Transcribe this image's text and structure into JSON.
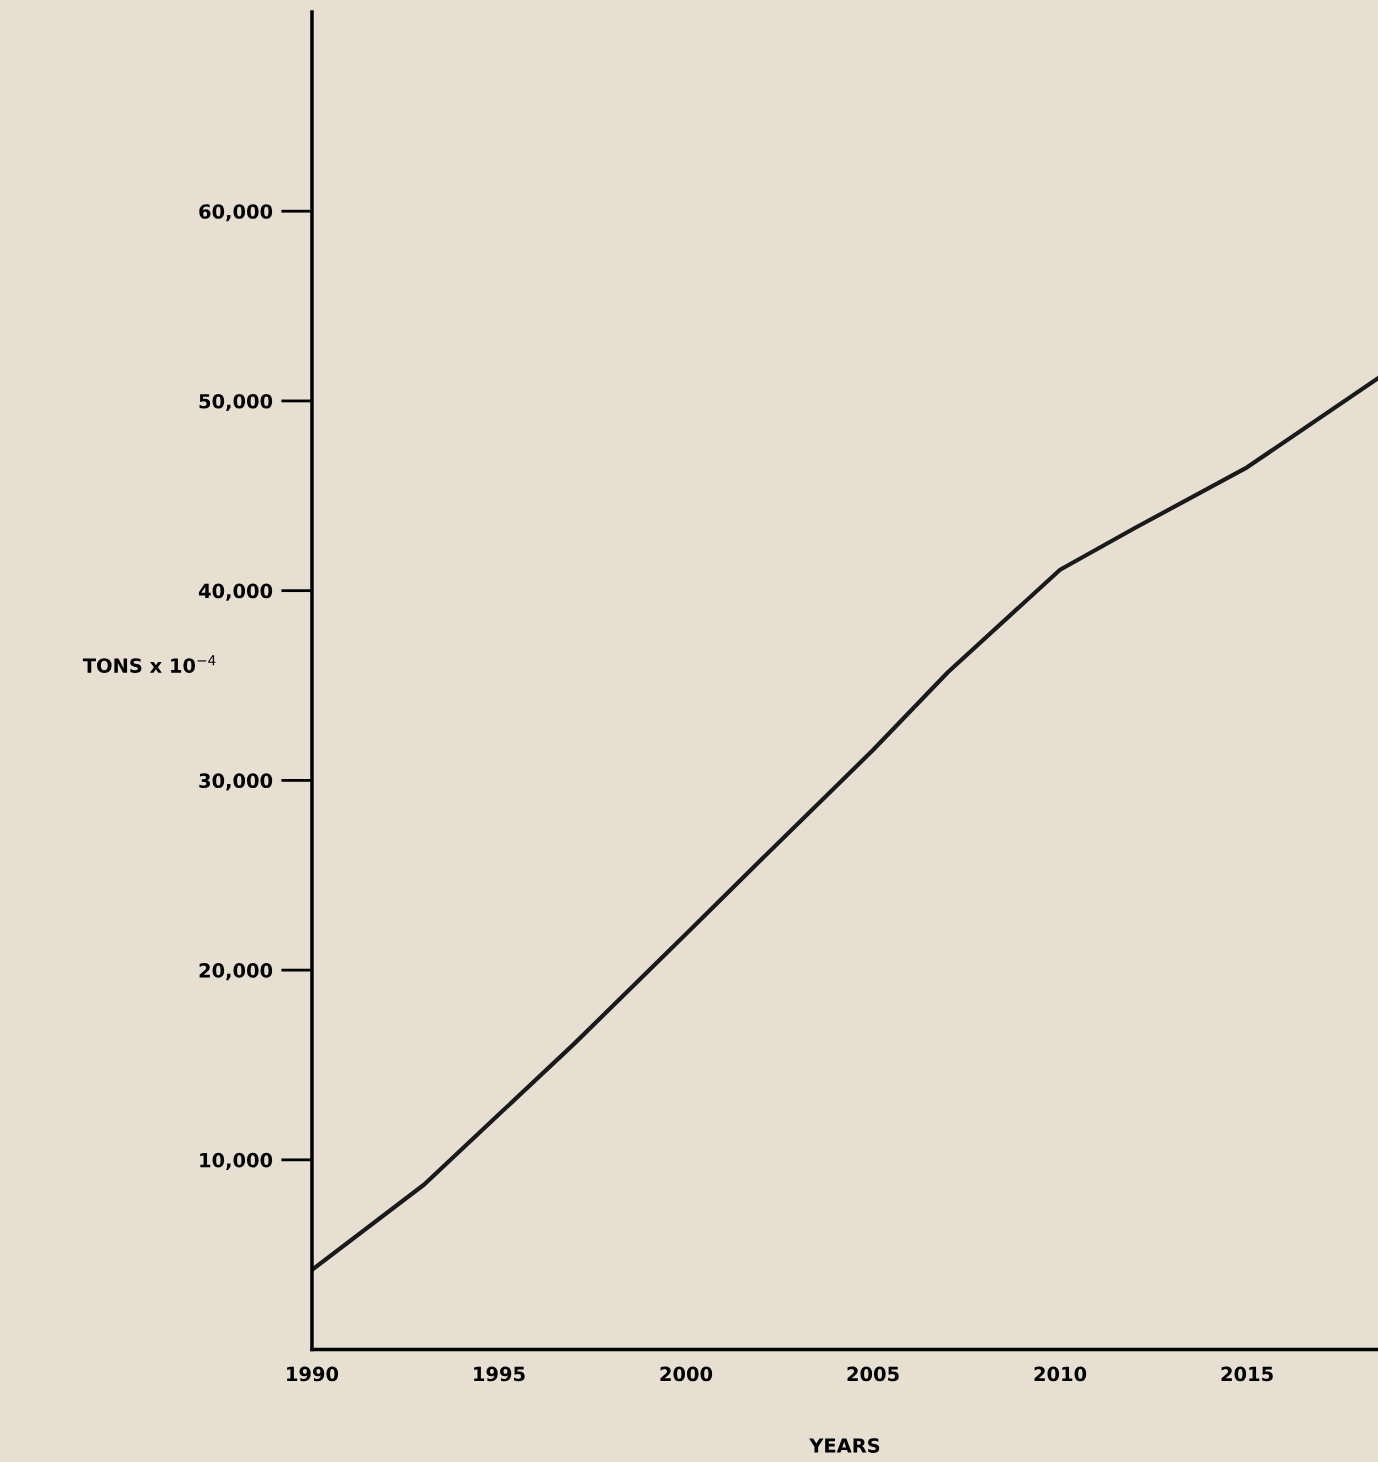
{
  "chart_data": {
    "type": "line",
    "xlabel": "YEARS",
    "ylabel": "TONS x 10$^{−4}$",
    "x": [
      1990,
      1993,
      1995,
      1997,
      2000,
      2002,
      2005,
      2007,
      2010,
      2012,
      2015,
      2018.5
    ],
    "series": [
      {
        "color": "#1a1a1a",
        "values": [
          4200,
          8700,
          12400,
          16100,
          21900,
          25800,
          31600,
          35700,
          41100,
          43300,
          46500,
          51200
        ]
      }
    ],
    "xlim": [
      1990,
      2018.5
    ],
    "xticks": [
      1990,
      1995,
      2000,
      2005,
      2010,
      2015
    ],
    "ylim": [
      0,
      70500
    ],
    "yticks": [
      {
        "value": 10000,
        "label": "10,000"
      },
      {
        "value": 20000,
        "label": "20,000"
      },
      {
        "value": 30000,
        "label": "30,000"
      },
      {
        "value": 40000,
        "label": "40,000"
      },
      {
        "value": 50000,
        "label": "50,000"
      },
      {
        "value": 60000,
        "label": "60,000"
      }
    ],
    "grid": false,
    "legend": false,
    "marker": "none",
    "line_style": "solid"
  }
}
